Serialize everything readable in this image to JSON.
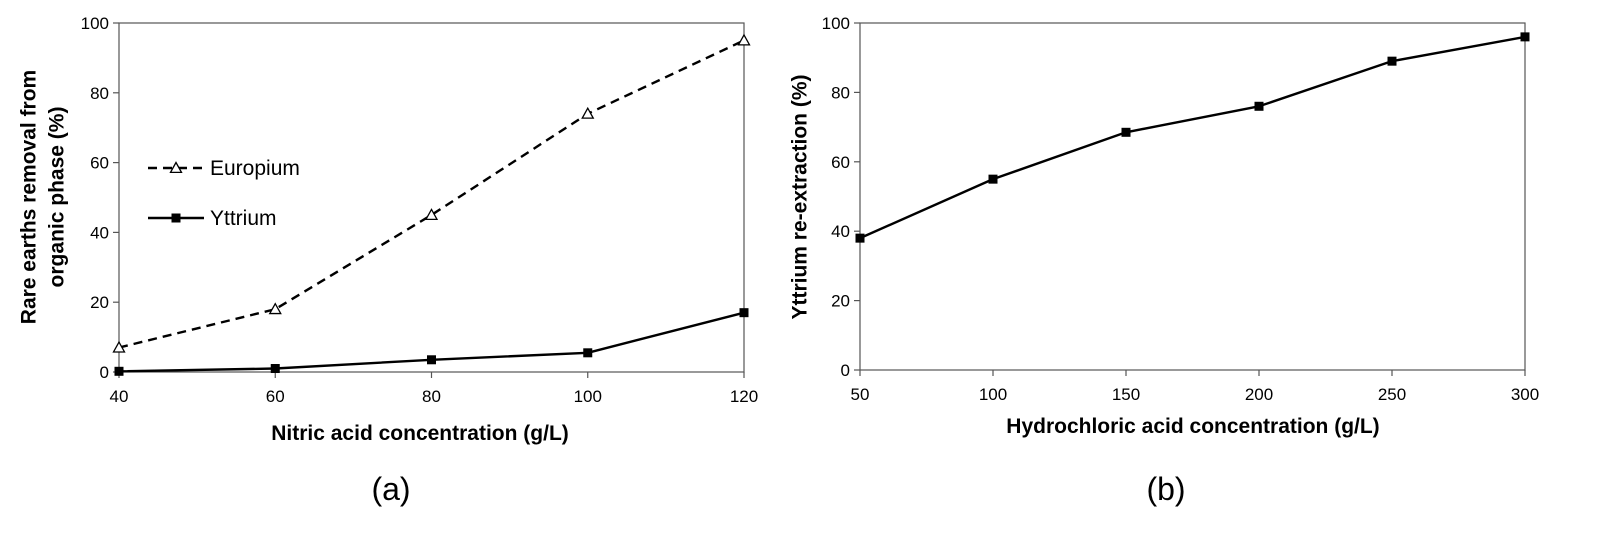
{
  "chart_data": [
    {
      "type": "line",
      "panel_label": "(a)",
      "xlabel": "Nitric acid concentration (g/L)",
      "ylabel_lines": [
        "Rare earths removal from",
        "organic phase (%)"
      ],
      "x": [
        40,
        60,
        80,
        100,
        120
      ],
      "xticks": [
        40,
        60,
        80,
        100,
        120
      ],
      "yticks": [
        0,
        20,
        40,
        60,
        80,
        100
      ],
      "xlim": [
        40,
        120
      ],
      "ylim": [
        0,
        100
      ],
      "grid": false,
      "legend_position": "left-middle",
      "series": [
        {
          "name": "Europium",
          "values": [
            7,
            18,
            45,
            74,
            95
          ],
          "line_style": "dashed",
          "marker": "open-triangle",
          "color": "#000000"
        },
        {
          "name": "Yttrium",
          "values": [
            0.2,
            1,
            3.5,
            5.5,
            17
          ],
          "line_style": "solid",
          "marker": "filled-square",
          "color": "#000000"
        }
      ]
    },
    {
      "type": "line",
      "panel_label": "(b)",
      "xlabel": "Hydrochloric acid concentration (g/L)",
      "ylabel_lines": [
        "Yttrium re-extraction (%)"
      ],
      "x": [
        50,
        100,
        150,
        200,
        250,
        300
      ],
      "xticks": [
        50,
        100,
        150,
        200,
        250,
        300
      ],
      "yticks": [
        0,
        20,
        40,
        60,
        80,
        100
      ],
      "xlim": [
        50,
        300
      ],
      "ylim": [
        0,
        100
      ],
      "grid": false,
      "series": [
        {
          "name": "Yttrium",
          "values": [
            38,
            55,
            68.5,
            76,
            89,
            96
          ],
          "line_style": "solid",
          "marker": "filled-square",
          "color": "#000000"
        }
      ]
    }
  ]
}
